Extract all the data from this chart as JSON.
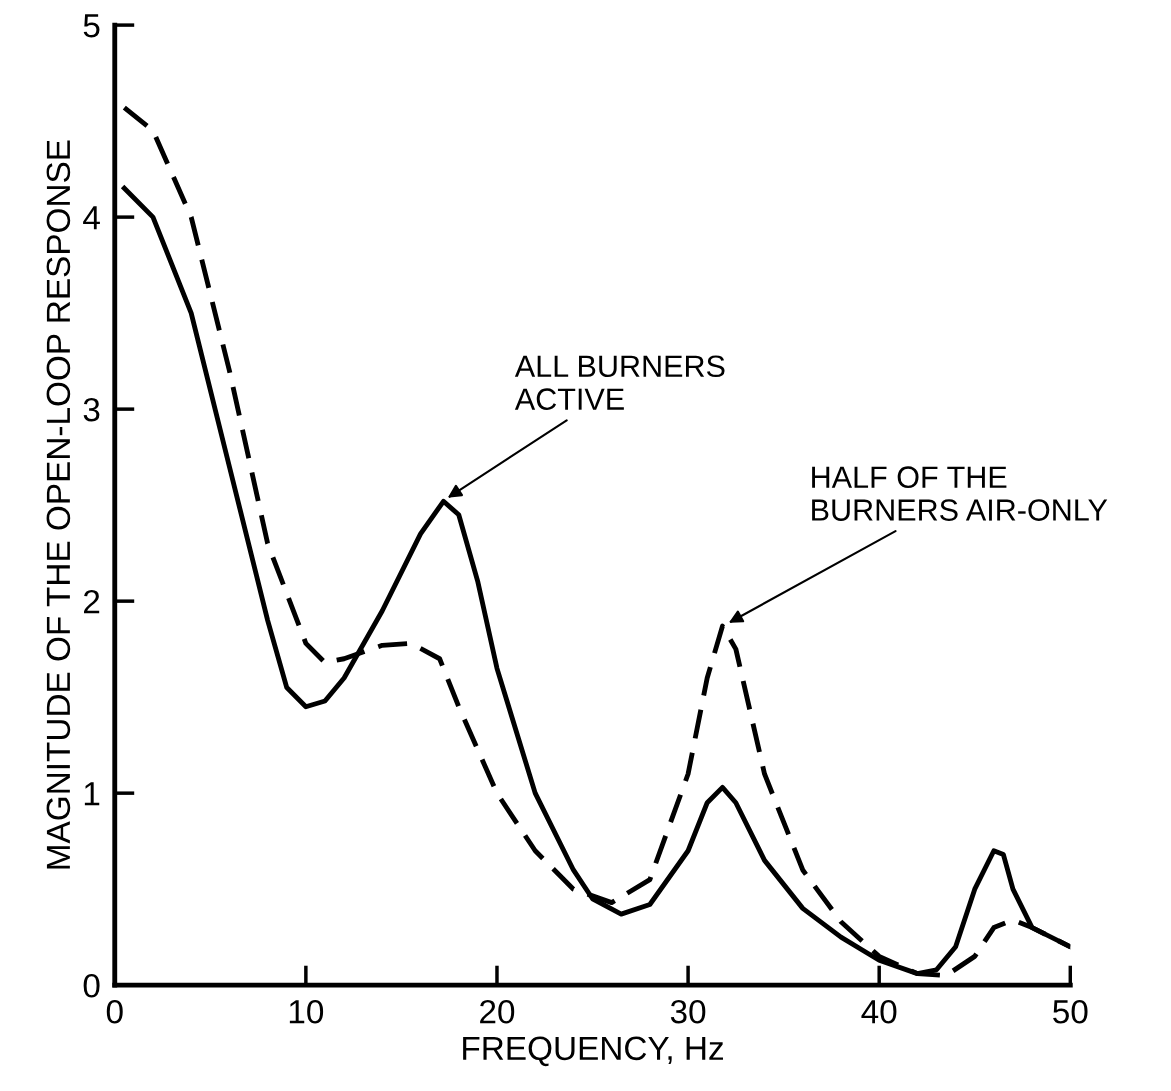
{
  "chart_data": {
    "type": "line",
    "xlabel": "FREQUENCY, Hz",
    "ylabel": "MAGNITUDE OF THE OPEN-LOOP RESPONSE",
    "xlim": [
      0,
      50
    ],
    "ylim": [
      0,
      5
    ],
    "xticks": [
      0,
      10,
      20,
      30,
      40,
      50
    ],
    "yticks": [
      0,
      1,
      2,
      3,
      4,
      5
    ],
    "grid": false,
    "legend": false,
    "series": [
      {
        "color": "#000000",
        "line_style": "solid",
        "x": [
          0.5,
          2,
          4,
          6,
          8,
          9,
          10,
          11,
          12,
          14,
          16,
          17.2,
          18,
          19,
          20,
          22,
          24,
          25,
          26.5,
          28,
          30,
          31,
          31.8,
          32.5,
          34,
          36,
          38,
          40,
          42,
          43,
          44,
          45,
          46,
          46.5,
          47,
          48,
          50
        ],
        "values": [
          4.15,
          4.0,
          3.5,
          2.7,
          1.9,
          1.55,
          1.45,
          1.48,
          1.6,
          1.95,
          2.35,
          2.52,
          2.45,
          2.1,
          1.65,
          1.0,
          0.6,
          0.45,
          0.37,
          0.42,
          0.7,
          0.95,
          1.03,
          0.95,
          0.65,
          0.4,
          0.25,
          0.13,
          0.06,
          0.08,
          0.2,
          0.5,
          0.7,
          0.68,
          0.5,
          0.3,
          0.2
        ]
      },
      {
        "color": "#000000",
        "line_style": "dashed",
        "x": [
          0.5,
          2,
          4,
          6,
          8,
          10,
          11,
          12,
          14,
          15.5,
          17,
          18,
          20,
          22,
          24,
          26,
          28,
          30,
          31,
          31.8,
          32.5,
          34,
          36,
          38,
          40,
          42,
          43.5,
          45,
          46,
          47,
          48,
          50
        ],
        "values": [
          4.57,
          4.45,
          4.0,
          3.2,
          2.3,
          1.78,
          1.68,
          1.7,
          1.77,
          1.78,
          1.7,
          1.45,
          1.0,
          0.7,
          0.5,
          0.43,
          0.55,
          1.1,
          1.6,
          1.87,
          1.75,
          1.1,
          0.6,
          0.33,
          0.15,
          0.06,
          0.05,
          0.15,
          0.3,
          0.34,
          0.3,
          0.2
        ]
      }
    ],
    "annotations": [
      {
        "text": "ALL BURNERS\nACTIVE",
        "x": 17.3,
        "y": 2.53
      },
      {
        "text": "HALF OF THE\nBURNERS AIR-ONLY",
        "x": 32.0,
        "y": 1.88
      }
    ]
  }
}
